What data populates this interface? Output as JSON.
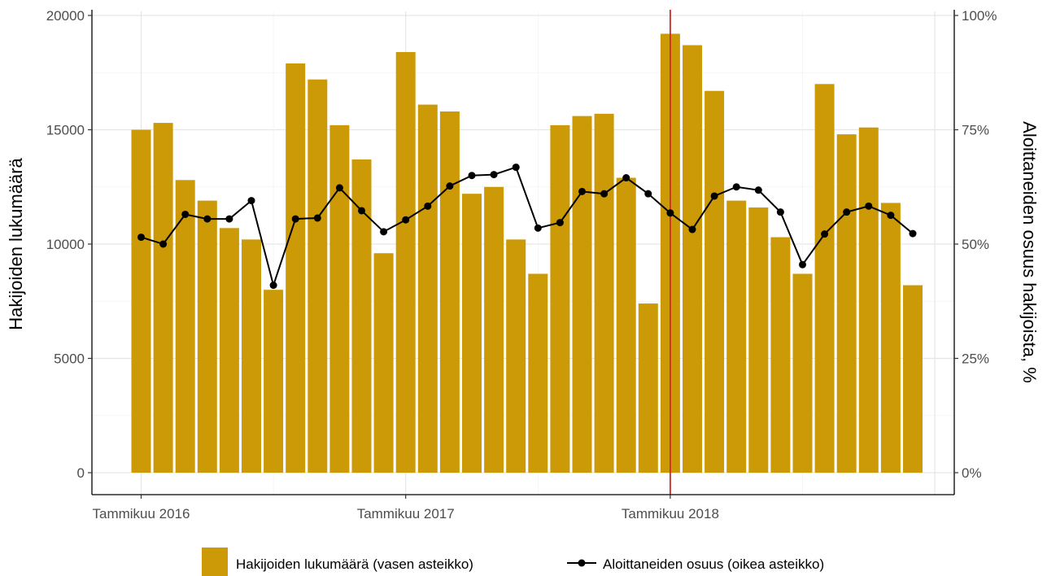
{
  "chart_data": {
    "type": "bar",
    "x_start": "2016-01",
    "x_tick_labels": [
      "Tammikuu 2016",
      "Tammikuu 2017",
      "Tammikuu 2018"
    ],
    "ylabel_left": "Hakijoiden lukumäärä",
    "ylabel_right": "Aloittaneiden osuus hakijoista, %",
    "ylim_left": [
      0,
      20000
    ],
    "ylim_right": [
      0,
      100
    ],
    "y_ticks_left": [
      0,
      5000,
      10000,
      15000,
      20000
    ],
    "y_ticks_left_labels": [
      "0",
      "5000",
      "10000",
      "15000",
      "20000"
    ],
    "y_ticks_right_labels": [
      "0%",
      "25%",
      "50%",
      "75%",
      "100%"
    ],
    "grid": true,
    "reference_line": {
      "x": "2018-01",
      "color": "#d62728"
    },
    "series": [
      {
        "name": "Hakijoiden lukumäärä (vasen asteikko)",
        "type": "bar",
        "axis": "left",
        "color": "#cc9a06",
        "values": [
          15000,
          15300,
          12800,
          11900,
          10700,
          10200,
          8000,
          17900,
          17200,
          15200,
          13700,
          9600,
          18400,
          16100,
          15800,
          12200,
          12500,
          10200,
          8700,
          15200,
          15600,
          15700,
          12900,
          7400,
          19200,
          18700,
          16700,
          11900,
          11600,
          10300,
          8700,
          17000,
          14800,
          15100,
          11800,
          8200
        ]
      },
      {
        "name": "Aloittaneiden osuus (oikea asteikko)",
        "type": "line",
        "axis": "right",
        "color": "#000000",
        "values": [
          51.5,
          50.0,
          56.5,
          55.5,
          55.5,
          59.5,
          41.0,
          55.5,
          55.7,
          62.3,
          57.3,
          52.7,
          55.3,
          58.3,
          62.7,
          65.0,
          65.2,
          66.8,
          53.5,
          54.7,
          61.5,
          61.0,
          64.5,
          61.0,
          56.8,
          53.2,
          60.5,
          62.5,
          61.8,
          57.0,
          45.5,
          52.2,
          57.0,
          58.3,
          56.3,
          52.3
        ]
      }
    ],
    "legend_position": "bottom"
  }
}
